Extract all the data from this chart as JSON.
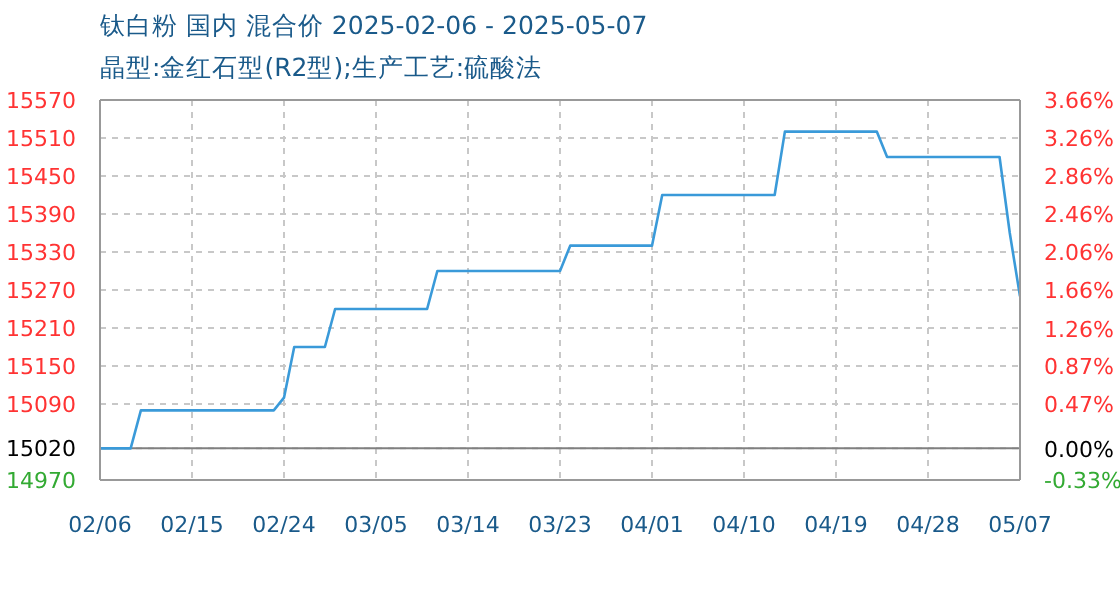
{
  "chart_data": {
    "type": "line",
    "title": "钛白粉 国内 混合价 2025-02-06 - 2025-05-07",
    "subtitle": "晶型:金红石型(R2型);生产工艺:硫酸法",
    "x": [
      "2025-02-06",
      "2025-02-09",
      "2025-02-10",
      "2025-02-23",
      "2025-02-24",
      "2025-02-25",
      "2025-02-28",
      "2025-03-01",
      "2025-03-10",
      "2025-03-11",
      "2025-03-23",
      "2025-03-24",
      "2025-04-01",
      "2025-04-02",
      "2025-04-13",
      "2025-04-14",
      "2025-04-23",
      "2025-04-24",
      "2025-05-05",
      "2025-05-06",
      "2025-05-07"
    ],
    "series": [
      {
        "color": "#3a9ad9",
        "values": [
          15020,
          15020,
          15080,
          15080,
          15100,
          15180,
          15180,
          15240,
          15240,
          15300,
          15300,
          15340,
          15340,
          15420,
          15420,
          15520,
          15520,
          15480,
          15480,
          15360,
          15260
        ]
      }
    ],
    "xlim": [
      "2025-02-06",
      "2025-05-07"
    ],
    "xticks": [
      {
        "value": "2025-02-06",
        "label": "02/06"
      },
      {
        "value": "2025-02-15",
        "label": "02/15"
      },
      {
        "value": "2025-02-24",
        "label": "02/24"
      },
      {
        "value": "2025-03-05",
        "label": "03/05"
      },
      {
        "value": "2025-03-14",
        "label": "03/14"
      },
      {
        "value": "2025-03-23",
        "label": "03/23"
      },
      {
        "value": "2025-04-01",
        "label": "04/01"
      },
      {
        "value": "2025-04-10",
        "label": "04/10"
      },
      {
        "value": "2025-04-19",
        "label": "04/19"
      },
      {
        "value": "2025-04-28",
        "label": "04/28"
      },
      {
        "value": "2025-05-07",
        "label": "05/07"
      }
    ],
    "ylim": [
      14970,
      15570
    ],
    "yticks": [
      14970,
      15020,
      15090,
      15150,
      15210,
      15270,
      15330,
      15390,
      15450,
      15510,
      15570
    ],
    "y2lim": [
      -0.33,
      3.66
    ],
    "y2ticks": [
      {
        "value": -0.33,
        "label": "-0.33%"
      },
      {
        "value": 0,
        "label": "0.00%"
      },
      {
        "value": 0.47,
        "label": "0.47%"
      },
      {
        "value": 0.87,
        "label": "0.87%"
      },
      {
        "value": 1.26,
        "label": "1.26%"
      },
      {
        "value": 1.66,
        "label": "1.66%"
      },
      {
        "value": 2.06,
        "label": "2.06%"
      },
      {
        "value": 2.46,
        "label": "2.46%"
      },
      {
        "value": 2.86,
        "label": "2.86%"
      },
      {
        "value": 3.26,
        "label": "3.26%"
      },
      {
        "value": 3.66,
        "label": "3.66%"
      }
    ],
    "ref_lines": [
      {
        "axis": "y",
        "value": 15020,
        "color": "#808080"
      }
    ],
    "grid": true,
    "marker": "none",
    "line_style": "solid"
  }
}
